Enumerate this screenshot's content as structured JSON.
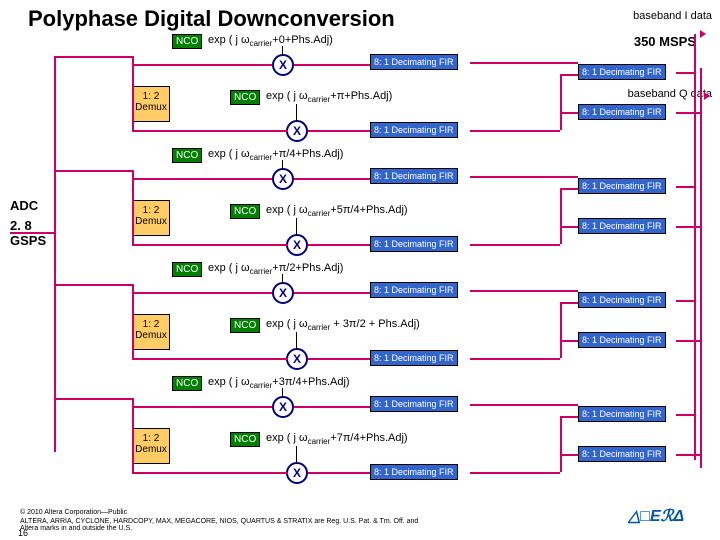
{
  "title": "Polyphase Digital Downconversion",
  "adc_label": "ADC",
  "gsps_label": "2. 8 GSPS",
  "msps_label": "350 MSPS",
  "output_i": "baseband I data",
  "output_q": "baseband Q data",
  "nco_label": "NCO",
  "demux_label": "1: 2 Demux",
  "mixer_label": "X",
  "fir_label": "8: 1 Decimating FIR",
  "branches": [
    {
      "exp_outer": "exp ( j ω<sub class=sub>carrier</sub>+0+Phs.Adj)",
      "exp_inner": "exp ( j ω<sub class=sub>carrier</sub>+π+Phs.Adj)"
    },
    {
      "exp_outer": "exp ( j ω<sub class=sub>carrier</sub>+π/4+Phs.Adj)",
      "exp_inner": "exp ( j ω<sub class=sub>carrier</sub>+5π/4+Phs.Adj)"
    },
    {
      "exp_outer": "exp ( j ω<sub class=sub>carrier</sub>+π/2+Phs.Adj)",
      "exp_inner": "exp ( j ω<sub class=sub>carrier</sub> + 3π/2 + Phs.Adj)"
    },
    {
      "exp_outer": "exp ( j ω<sub class=sub>carrier</sub>+3π/4+Phs.Adj)",
      "exp_inner": "exp ( j ω<sub class=sub>carrier</sub>+7π/4+Phs.Adj)"
    }
  ],
  "footer_copyright": "© 2010 Altera Corporation—Public",
  "footer_legal": "ALTERA, ARRIA, CYCLONE, HARDCOPY, MAX, MEGACORE, NIOS, QUARTUS & STRATIX are Reg. U.S. Pat. & Tm. Off. and Altera marks in and outside the U.S.",
  "page_num": "16",
  "logo": "ALTERA",
  "layout": {
    "branch_y_start": 34,
    "branch_height": 114
  }
}
